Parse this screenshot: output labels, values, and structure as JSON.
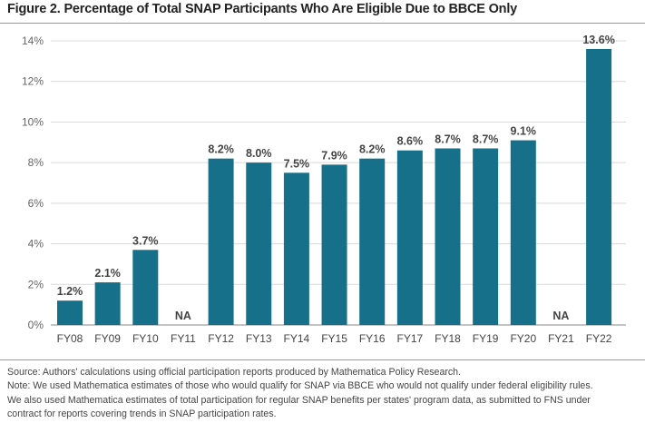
{
  "title": "Figure 2. Percentage of Total SNAP Participants Who Are Eligible Due to BBCE Only",
  "chart_data": {
    "type": "bar",
    "title": "Figure 2. Percentage of Total SNAP Participants Who Are Eligible Due to BBCE Only",
    "xlabel": "",
    "ylabel": "",
    "categories": [
      "FY08",
      "FY09",
      "FY10",
      "FY11",
      "FY12",
      "FY13",
      "FY14",
      "FY15",
      "FY16",
      "FY17",
      "FY18",
      "FY19",
      "FY20",
      "FY21",
      "FY22"
    ],
    "values": [
      1.2,
      2.1,
      3.7,
      null,
      8.2,
      8.0,
      7.5,
      7.9,
      8.2,
      8.6,
      8.7,
      8.7,
      9.1,
      null,
      13.6
    ],
    "data_labels": [
      "1.2%",
      "2.1%",
      "3.7%",
      "NA",
      "8.2%",
      "8.0%",
      "7.5%",
      "7.9%",
      "8.2%",
      "8.6%",
      "8.7%",
      "8.7%",
      "9.1%",
      "NA",
      "13.6%"
    ],
    "yticks": [
      0,
      2,
      4,
      6,
      8,
      10,
      12,
      14
    ],
    "ytick_labels": [
      "0%",
      "2%",
      "4%",
      "6%",
      "8%",
      "10%",
      "12%",
      "14%"
    ],
    "ylim": [
      0,
      14
    ],
    "grid": true,
    "bar_color": "#17708a"
  },
  "notes": [
    "Source: Authors' calculations using official participation reports produced by Mathematica Policy Research.",
    "Note: We used Mathematica estimates of those who would qualify for SNAP via BBCE who would not qualify under federal eligibility rules.",
    "We also used Mathematica estimates of total participation for regular SNAP benefits per states' program data, as submitted to FNS under",
    "contract for reports covering trends in SNAP participation rates."
  ]
}
